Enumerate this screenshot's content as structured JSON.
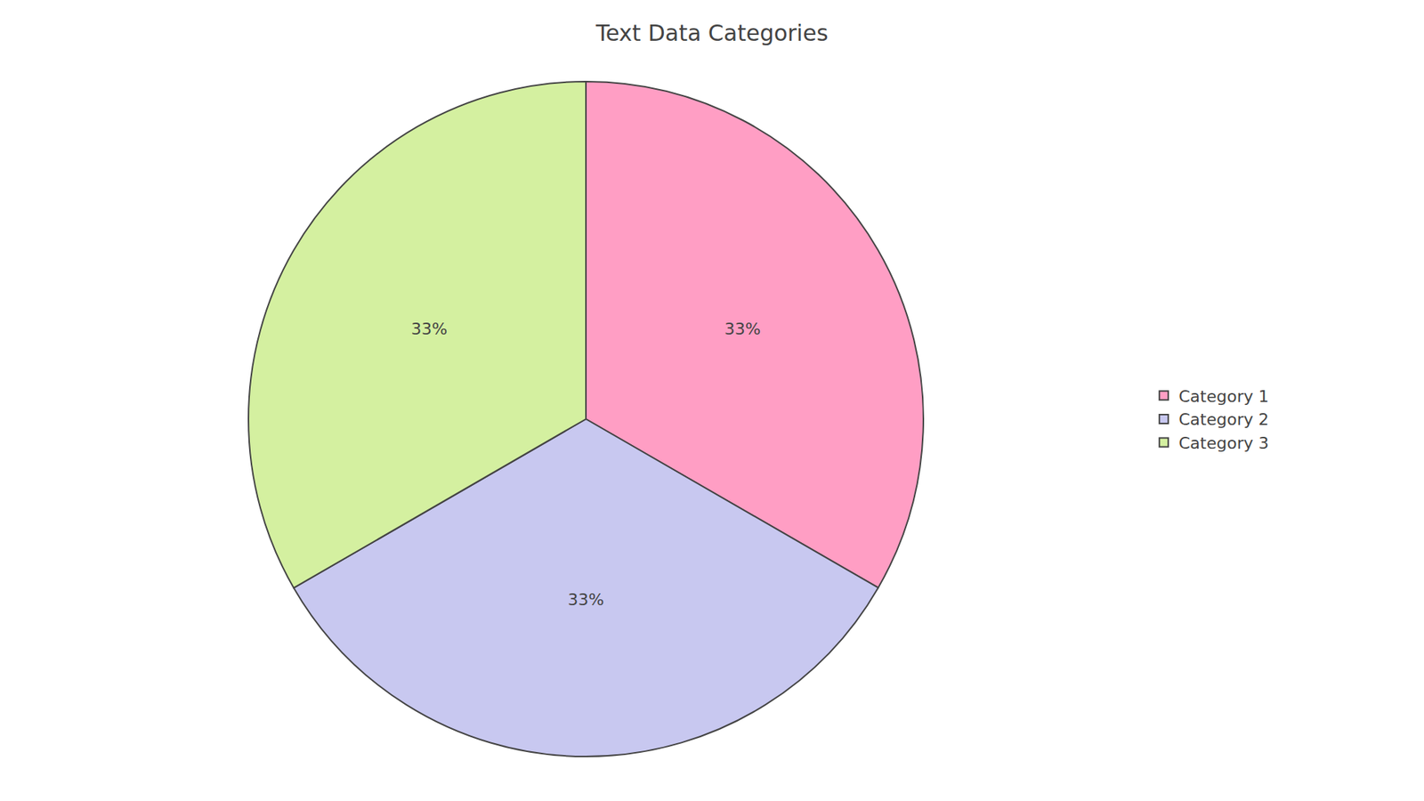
{
  "chart_data": {
    "type": "pie",
    "title": "Text Data Categories",
    "categories": [
      "Category 1",
      "Category 2",
      "Category 3"
    ],
    "values": [
      33.33,
      33.33,
      33.34
    ],
    "value_labels": [
      "33%",
      "33%",
      "33%"
    ],
    "colors": [
      "#FF9EC4",
      "#C8C8F0",
      "#D4F0A0"
    ],
    "data_labels": true,
    "legend": "right"
  }
}
